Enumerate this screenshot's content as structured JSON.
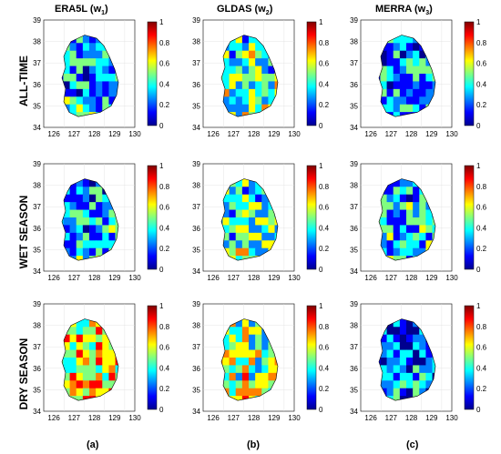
{
  "column_titles": [
    {
      "prefix": "ERA5L (w",
      "sub": "1",
      "suffix": ")"
    },
    {
      "prefix": "GLDAS (w",
      "sub": "2",
      "suffix": ")"
    },
    {
      "prefix": "MERRA (w",
      "sub": "3",
      "suffix": ")"
    }
  ],
  "row_titles": [
    "ALL-TIME",
    "WET SEASON",
    "DRY SEASON"
  ],
  "subplot_labels": [
    "(a)",
    "(b)",
    "(c)"
  ],
  "lat_ticks": [
    "39",
    "38",
    "37",
    "36",
    "35",
    "34"
  ],
  "lon_ticks": [
    "126",
    "127",
    "128",
    "129",
    "130"
  ],
  "colorbar_ticks": [
    "1",
    "0.8",
    "0.6",
    "0.4",
    "0.2",
    "0"
  ],
  "colormap": [
    "#00008f",
    "#0000ff",
    "#0080ff",
    "#00ffff",
    "#80ff80",
    "#ffff00",
    "#ff8000",
    "#ff0000",
    "#800000"
  ],
  "panels": [
    {
      "id": "era5l-all",
      "tone": 0.3
    },
    {
      "id": "gldas-all",
      "tone": 0.45
    },
    {
      "id": "merra-all",
      "tone": 0.28
    },
    {
      "id": "era5l-wet",
      "tone": 0.3
    },
    {
      "id": "gldas-wet",
      "tone": 0.42
    },
    {
      "id": "merra-wet",
      "tone": 0.32
    },
    {
      "id": "era5l-dry",
      "tone": 0.62
    },
    {
      "id": "gldas-dry",
      "tone": 0.55
    },
    {
      "id": "merra-dry",
      "tone": 0.18
    }
  ]
}
